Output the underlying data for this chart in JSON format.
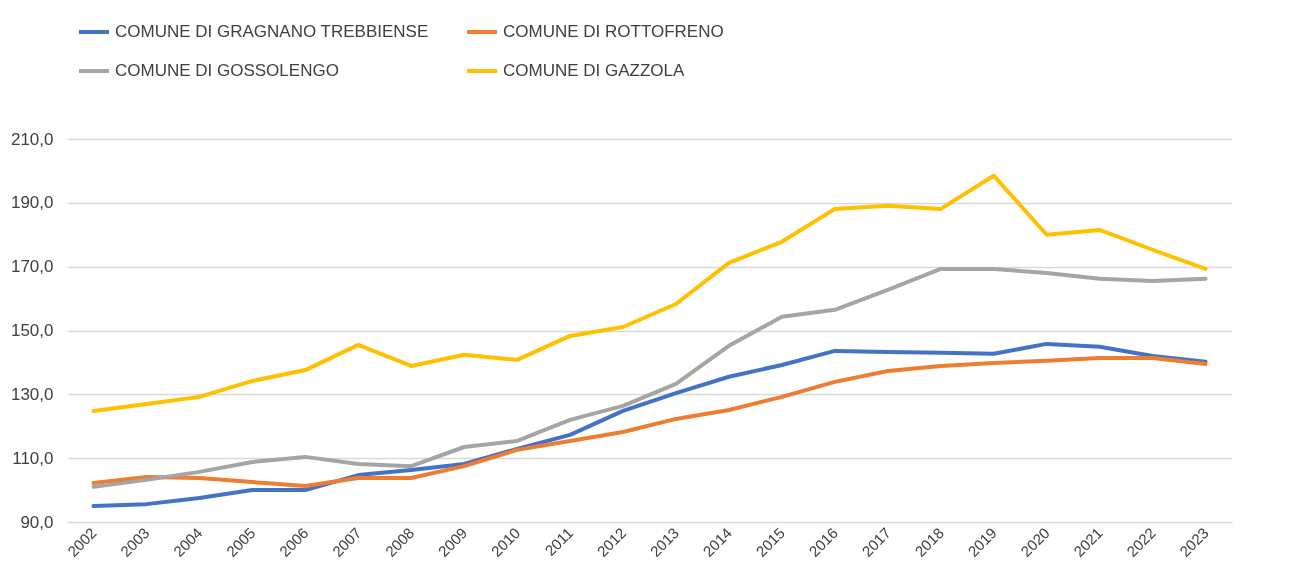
{
  "chart_data": {
    "type": "line",
    "categories": [
      "2002",
      "2003",
      "2004",
      "2005",
      "2006",
      "2007",
      "2008",
      "2009",
      "2010",
      "2011",
      "2012",
      "2013",
      "2014",
      "2015",
      "2016",
      "2017",
      "2018",
      "2019",
      "2020",
      "2021",
      "2022",
      "2023"
    ],
    "series": [
      {
        "name": "COMUNE DI GRAGNANO TREBBIENSE",
        "color": "#4472c4",
        "values": [
          95.0,
          95.6,
          97.5,
          100.0,
          100.0,
          104.7,
          106.3,
          108.2,
          112.9,
          117.3,
          124.8,
          130.4,
          135.5,
          139.2,
          143.6,
          143.3,
          143.0,
          142.7,
          145.8,
          144.9,
          142.0,
          140.2
        ]
      },
      {
        "name": "COMUNE DI ROTTOFRENO",
        "color": "#ed7d31",
        "values": [
          102.2,
          104.1,
          103.8,
          102.5,
          101.3,
          103.8,
          103.8,
          107.5,
          112.6,
          115.4,
          118.2,
          122.3,
          125.1,
          129.2,
          133.9,
          137.3,
          138.9,
          139.8,
          140.5,
          141.4,
          141.4,
          139.5
        ]
      },
      {
        "name": "COMUNE DI GOSSOLENGO",
        "color": "#a5a5a5",
        "values": [
          101.0,
          103.2,
          105.7,
          108.8,
          110.4,
          108.2,
          107.5,
          113.5,
          115.4,
          122.0,
          126.4,
          133.3,
          145.2,
          154.3,
          156.5,
          162.7,
          169.3,
          169.3,
          168.0,
          166.2,
          165.5,
          166.2
        ]
      },
      {
        "name": "COMUNE DI GAZZOLA",
        "color": "#ffc000",
        "values": [
          124.8,
          127.0,
          129.2,
          134.2,
          137.6,
          145.5,
          138.9,
          142.4,
          140.8,
          148.3,
          151.1,
          158.3,
          171.2,
          177.8,
          188.1,
          189.1,
          188.1,
          198.5,
          180.0,
          181.5,
          175.3,
          169.3
        ]
      }
    ],
    "ylim": [
      90,
      210
    ],
    "yticks": [
      {
        "value": 90,
        "label": "90,0"
      },
      {
        "value": 110,
        "label": "110,0"
      },
      {
        "value": 130,
        "label": "130,0"
      },
      {
        "value": 150,
        "label": "150,0"
      },
      {
        "value": 170,
        "label": "170,0"
      },
      {
        "value": 190,
        "label": "190,0"
      },
      {
        "value": 210,
        "label": "210,0"
      }
    ],
    "grid": "y",
    "legend": "top",
    "marker": "none",
    "line_style": "solid"
  }
}
